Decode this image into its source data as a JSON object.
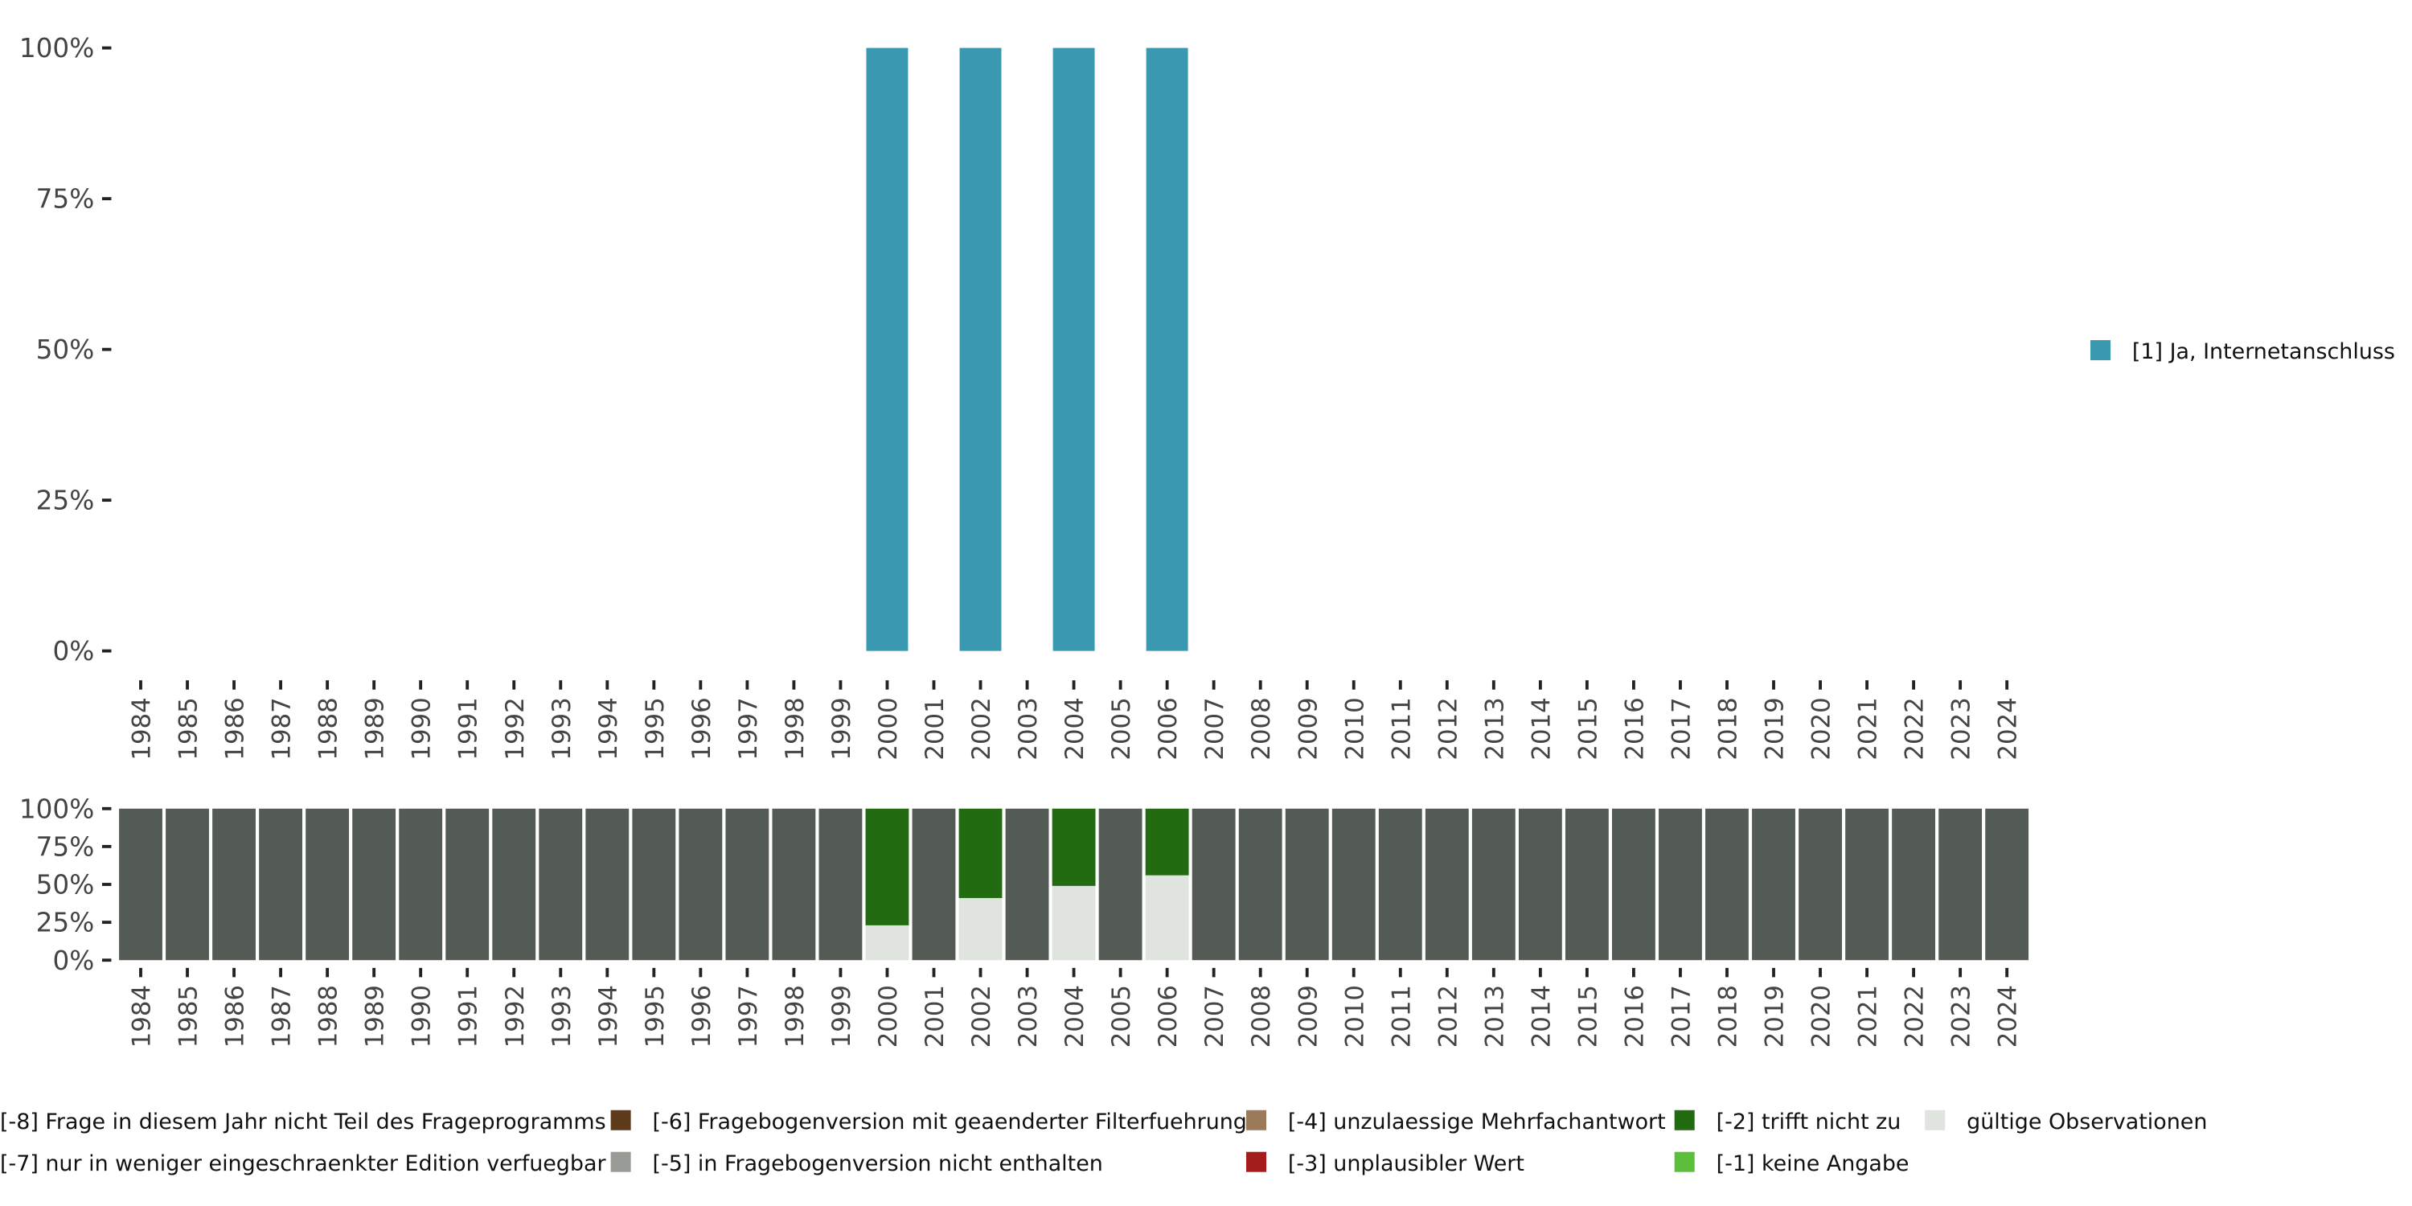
{
  "chart_data": [
    {
      "type": "bar",
      "title": "",
      "xlabel": "",
      "ylabel": "",
      "ylim": [
        0,
        100
      ],
      "yticks": [
        "0%",
        "25%",
        "50%",
        "75%",
        "100%"
      ],
      "categories": [
        "1984",
        "1985",
        "1986",
        "1987",
        "1988",
        "1989",
        "1990",
        "1991",
        "1992",
        "1993",
        "1994",
        "1995",
        "1996",
        "1997",
        "1998",
        "1999",
        "2000",
        "2001",
        "2002",
        "2003",
        "2004",
        "2005",
        "2006",
        "2007",
        "2008",
        "2009",
        "2010",
        "2011",
        "2012",
        "2013",
        "2014",
        "2015",
        "2016",
        "2017",
        "2018",
        "2019",
        "2020",
        "2021",
        "2022",
        "2023",
        "2024"
      ],
      "series": [
        {
          "name": "[1] Ja, Internetanschluss",
          "color": "#3a98b0",
          "values": {
            "2000": 100,
            "2002": 100,
            "2004": 100,
            "2006": 100
          }
        }
      ],
      "legend": {
        "position": "right",
        "items": [
          {
            "label": "[1] Ja, Internetanschluss",
            "color": "#3a98b0"
          }
        ]
      }
    },
    {
      "type": "bar",
      "stacked": true,
      "ylim": [
        0,
        100
      ],
      "yticks": [
        "0%",
        "25%",
        "50%",
        "75%",
        "100%"
      ],
      "categories": [
        "1984",
        "1985",
        "1986",
        "1987",
        "1988",
        "1989",
        "1990",
        "1991",
        "1992",
        "1993",
        "1994",
        "1995",
        "1996",
        "1997",
        "1998",
        "1999",
        "2000",
        "2001",
        "2002",
        "2003",
        "2004",
        "2005",
        "2006",
        "2007",
        "2008",
        "2009",
        "2010",
        "2011",
        "2012",
        "2013",
        "2014",
        "2015",
        "2016",
        "2017",
        "2018",
        "2019",
        "2020",
        "2021",
        "2022",
        "2023",
        "2024"
      ],
      "series": [
        {
          "name": "gültige Observationen",
          "color": "#e0e4df",
          "values": {
            "2000": 23,
            "2002": 41,
            "2004": 49,
            "2006": 56
          }
        },
        {
          "name": "[-2] trifft nicht zu",
          "color": "#226b10",
          "values": {
            "2000": 77,
            "2002": 59,
            "2004": 51,
            "2006": 44
          }
        },
        {
          "name": "[-8] Frage in diesem Jahr nicht Teil des Frageprogramms",
          "color": "#545b54",
          "values": "100 for all other years"
        }
      ],
      "legend": {
        "position": "bottom",
        "items": [
          {
            "label": "[-8] Frage in diesem Jahr nicht Teil des Frageprogramms",
            "color": "#545b54"
          },
          {
            "label": "[-7] nur in weniger eingeschraenkter Edition verfuegbar",
            "color": "#6b6b6b"
          },
          {
            "label": "[-6] Fragebogenversion mit geaenderter Filterfuehrung",
            "color": "#5c3a1a"
          },
          {
            "label": "[-5] in Fragebogenversion nicht enthalten",
            "color": "#999c96"
          },
          {
            "label": "[-4] unzulaessige Mehrfachantwort",
            "color": "#9a7a58"
          },
          {
            "label": "[-3] unplausibler Wert",
            "color": "#a51c1c"
          },
          {
            "label": "[-2] trifft nicht zu",
            "color": "#226b10"
          },
          {
            "label": "[-1] keine Angabe",
            "color": "#5cbf3c"
          },
          {
            "label": "gültige Observationen",
            "color": "#e0e4df"
          }
        ]
      }
    }
  ]
}
